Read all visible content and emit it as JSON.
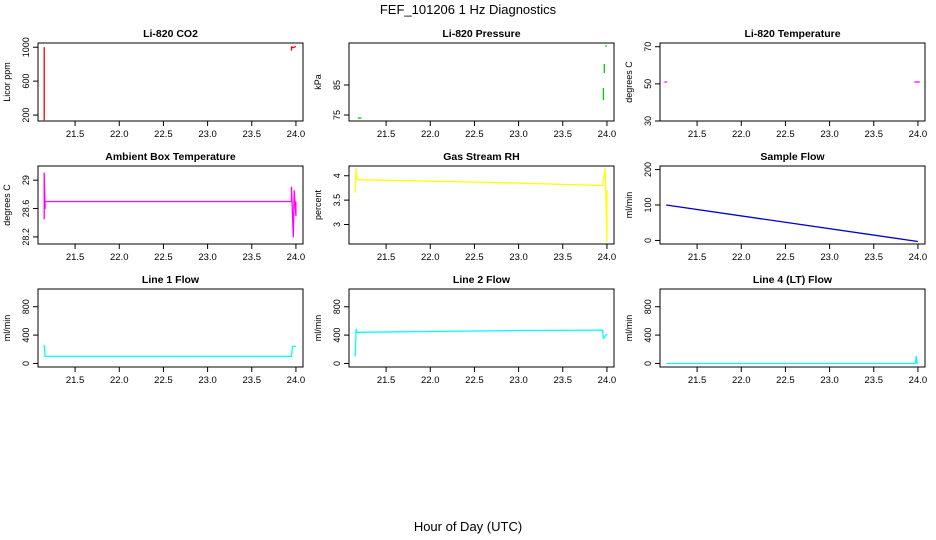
{
  "page": {
    "title": "FEF_101206  1 Hz Diagnostics",
    "xlabel": "Hour of Day (UTC)"
  },
  "chart_data": [
    {
      "type": "line",
      "title": "Li-820 CO2",
      "ylabel": "Licor ppm",
      "color": "#ff0000",
      "xlim": [
        21.08,
        24.08
      ],
      "ylim": [
        130,
        1050
      ],
      "yticks": [
        200,
        600,
        1000
      ],
      "xticks": [
        "21.5",
        "22.0",
        "22.5",
        "23.0",
        "23.5",
        "24.0"
      ],
      "series": [
        {
          "name": "seg1",
          "points": [
            [
              21.15,
              1000
            ],
            [
              21.15,
              140
            ]
          ]
        },
        {
          "name": "seg2",
          "points": [
            [
              23.95,
              960
            ],
            [
              23.95,
              1005
            ],
            [
              23.97,
              995
            ],
            [
              24.0,
              1010
            ]
          ]
        }
      ]
    },
    {
      "type": "line",
      "title": "Li-820 Pressure",
      "ylabel": "kPa",
      "color": "#00cd00",
      "xlim": [
        21.08,
        24.08
      ],
      "ylim": [
        73,
        99
      ],
      "yticks": [
        75,
        85
      ],
      "xticks": [
        "21.5",
        "22.0",
        "22.5",
        "23.0",
        "23.5",
        "24.0"
      ],
      "series": [
        {
          "name": "seg1",
          "points": [
            [
              21.18,
              74
            ],
            [
              21.22,
              74
            ]
          ]
        },
        {
          "name": "seg2",
          "points": [
            [
              23.96,
              80
            ],
            [
              23.96,
              84
            ]
          ]
        },
        {
          "name": "seg3",
          "points": [
            [
              23.97,
              89
            ],
            [
              23.97,
              92
            ]
          ]
        },
        {
          "name": "seg4",
          "points": [
            [
              23.98,
              98
            ],
            [
              24.0,
              98
            ]
          ]
        }
      ]
    },
    {
      "type": "line",
      "title": "Li-820 Temperature",
      "ylabel": "degrees C",
      "color": "#ff00ff",
      "xlim": [
        21.08,
        24.08
      ],
      "ylim": [
        30,
        72
      ],
      "yticks": [
        30,
        50,
        70
      ],
      "xticks": [
        "21.5",
        "22.0",
        "22.5",
        "23.0",
        "23.5",
        "24.0"
      ],
      "series": [
        {
          "name": "seg1",
          "points": [
            [
              21.13,
              51
            ],
            [
              21.16,
              51
            ]
          ]
        },
        {
          "name": "seg2",
          "points": [
            [
              23.96,
              51
            ],
            [
              24.02,
              51
            ]
          ]
        }
      ]
    },
    {
      "type": "line",
      "title": "Ambient Box Temperature",
      "ylabel": "degrees C",
      "color": "#ff00ff",
      "xlim": [
        21.08,
        24.08
      ],
      "ylim": [
        28.1,
        29.2
      ],
      "yticks": [
        28.2,
        28.6,
        29.0
      ],
      "xticks": [
        "21.5",
        "22.0",
        "22.5",
        "23.0",
        "23.5",
        "24.0"
      ],
      "series": [
        {
          "name": "main",
          "points": [
            [
              21.15,
              28.45
            ],
            [
              21.15,
              29.1
            ],
            [
              21.16,
              28.6
            ],
            [
              21.16,
              28.7
            ],
            [
              23.95,
              28.7
            ],
            [
              23.95,
              28.9
            ],
            [
              23.97,
              28.2
            ],
            [
              23.98,
              28.85
            ],
            [
              24.0,
              28.5
            ],
            [
              24.0,
              28.7
            ]
          ]
        }
      ]
    },
    {
      "type": "line",
      "title": "Gas Stream RH",
      "ylabel": "percent",
      "color": "#ffff00",
      "xlim": [
        21.08,
        24.08
      ],
      "ylim": [
        2.6,
        4.2
      ],
      "yticks": [
        3.0,
        3.5,
        4.0
      ],
      "xticks": [
        "21.5",
        "22.0",
        "22.5",
        "23.0",
        "23.5",
        "24.0"
      ],
      "series": [
        {
          "name": "main",
          "points": [
            [
              21.15,
              3.65
            ],
            [
              21.16,
              4.15
            ],
            [
              21.17,
              3.92
            ],
            [
              22.0,
              3.89
            ],
            [
              23.0,
              3.85
            ],
            [
              23.95,
              3.8
            ],
            [
              23.98,
              4.15
            ],
            [
              24.0,
              2.65
            ],
            [
              24.0,
              3.7
            ]
          ]
        }
      ]
    },
    {
      "type": "line",
      "title": "Sample Flow",
      "ylabel": "ml/min",
      "color": "#0000cd",
      "xlim": [
        21.08,
        24.08
      ],
      "ylim": [
        -10,
        210
      ],
      "yticks": [
        0,
        100,
        200
      ],
      "xticks": [
        "21.5",
        "22.0",
        "22.5",
        "23.0",
        "23.5",
        "24.0"
      ],
      "series": [
        {
          "name": "main",
          "points": [
            [
              21.15,
              100
            ],
            [
              24.0,
              -3
            ]
          ]
        }
      ]
    },
    {
      "type": "line",
      "title": "Line 1 Flow",
      "ylabel": "ml/min",
      "color": "#00ffff",
      "xlim": [
        21.08,
        24.08
      ],
      "ylim": [
        -50,
        1050
      ],
      "yticks": [
        0,
        400,
        800
      ],
      "xticks": [
        "21.5",
        "22.0",
        "22.5",
        "23.0",
        "23.5",
        "24.0"
      ],
      "series": [
        {
          "name": "main",
          "points": [
            [
              21.15,
              260
            ],
            [
              21.16,
              100
            ],
            [
              23.95,
              100
            ],
            [
              23.96,
              240
            ],
            [
              24.0,
              240
            ]
          ]
        }
      ]
    },
    {
      "type": "line",
      "title": "Line 2 Flow",
      "ylabel": "ml/min",
      "color": "#00ffff",
      "xlim": [
        21.08,
        24.08
      ],
      "ylim": [
        -50,
        1050
      ],
      "yticks": [
        0,
        400,
        800
      ],
      "xticks": [
        "21.5",
        "22.0",
        "22.5",
        "23.0",
        "23.5",
        "24.0"
      ],
      "series": [
        {
          "name": "main",
          "points": [
            [
              21.15,
              100
            ],
            [
              21.16,
              480
            ],
            [
              21.17,
              440
            ],
            [
              22.0,
              450
            ],
            [
              23.0,
              465
            ],
            [
              23.95,
              470
            ],
            [
              23.96,
              350
            ],
            [
              24.0,
              420
            ]
          ]
        }
      ]
    },
    {
      "type": "line",
      "title": "Line 4 (LT) Flow",
      "ylabel": "ml/min",
      "color": "#00ffff",
      "xlim": [
        21.08,
        24.08
      ],
      "ylim": [
        -50,
        1050
      ],
      "yticks": [
        0,
        400,
        800
      ],
      "xticks": [
        "21.5",
        "22.0",
        "22.5",
        "23.0",
        "23.5",
        "24.0"
      ],
      "series": [
        {
          "name": "main",
          "points": [
            [
              21.15,
              0
            ],
            [
              23.97,
              0
            ],
            [
              23.98,
              100
            ],
            [
              23.99,
              0
            ],
            [
              24.0,
              0
            ]
          ]
        }
      ]
    }
  ]
}
